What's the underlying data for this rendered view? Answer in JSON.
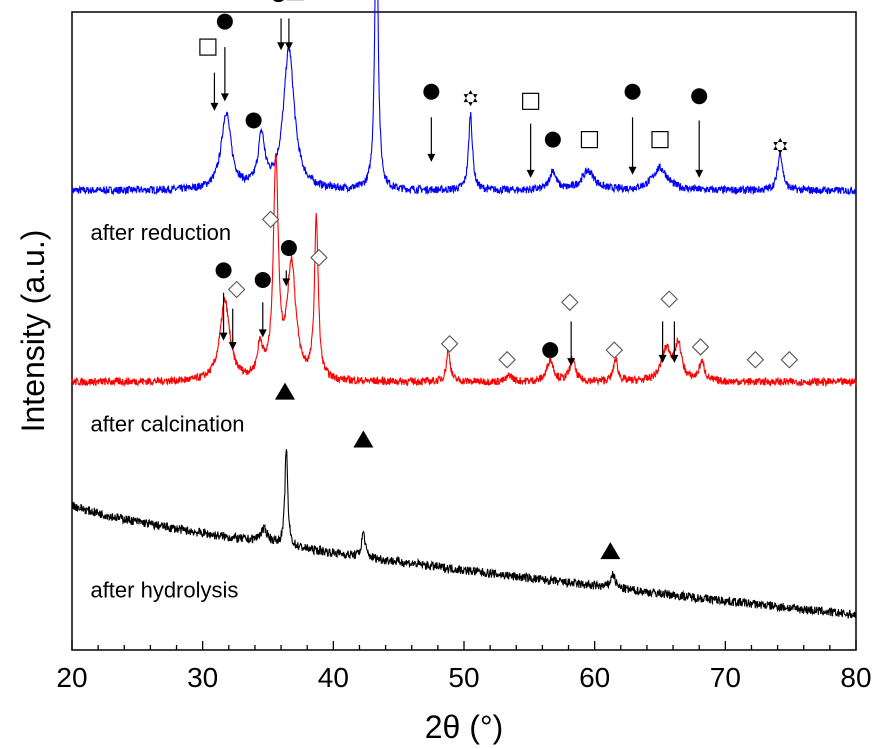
{
  "chart_data": {
    "type": "line",
    "xlabel": "2θ (°)",
    "ylabel": "Intensity (a.u.)",
    "xlim": [
      20,
      80
    ],
    "x_ticks": [
      20,
      30,
      40,
      50,
      60,
      70,
      80
    ],
    "x_tick_labels": [
      "20",
      "30",
      "40",
      "50",
      "60",
      "70",
      "80"
    ],
    "y_ticks_shown": false,
    "grid": false,
    "series": [
      {
        "name": "after reduction",
        "color": "#0000ff",
        "baseline": 0.72,
        "noise": 0.006,
        "peaks": [
          {
            "x": 31.8,
            "h": 0.12,
            "w": 0.9
          },
          {
            "x": 34.5,
            "h": 0.08,
            "w": 0.6
          },
          {
            "x": 36.6,
            "h": 0.22,
            "w": 1.0
          },
          {
            "x": 43.3,
            "h": 0.46,
            "w": 0.3
          },
          {
            "x": 50.5,
            "h": 0.12,
            "w": 0.35
          },
          {
            "x": 56.8,
            "h": 0.03,
            "w": 0.6
          },
          {
            "x": 59.5,
            "h": 0.03,
            "w": 1.2
          },
          {
            "x": 65.0,
            "h": 0.035,
            "w": 1.4
          },
          {
            "x": 74.2,
            "h": 0.06,
            "w": 0.45
          }
        ]
      },
      {
        "name": "after calcination",
        "color": "#ff0000",
        "baseline": 0.42,
        "noise": 0.006,
        "peaks": [
          {
            "x": 31.7,
            "h": 0.125,
            "w": 0.9
          },
          {
            "x": 34.4,
            "h": 0.05,
            "w": 0.5
          },
          {
            "x": 35.6,
            "h": 0.34,
            "w": 0.45
          },
          {
            "x": 36.8,
            "h": 0.18,
            "w": 0.8
          },
          {
            "x": 38.7,
            "h": 0.25,
            "w": 0.35
          },
          {
            "x": 48.8,
            "h": 0.05,
            "w": 0.35
          },
          {
            "x": 53.5,
            "h": 0.01,
            "w": 0.5
          },
          {
            "x": 56.6,
            "h": 0.035,
            "w": 0.6
          },
          {
            "x": 58.3,
            "h": 0.035,
            "w": 0.5
          },
          {
            "x": 61.6,
            "h": 0.035,
            "w": 0.4
          },
          {
            "x": 65.5,
            "h": 0.05,
            "w": 0.9
          },
          {
            "x": 66.4,
            "h": 0.055,
            "w": 0.6
          },
          {
            "x": 68.2,
            "h": 0.03,
            "w": 0.5
          }
        ]
      },
      {
        "name": "after hydrolysis",
        "color": "#000000",
        "baseline_start": 0.228,
        "baseline_end": 0.055,
        "noise": 0.007,
        "peaks": [
          {
            "x": 34.7,
            "h": 0.02,
            "w": 0.8
          },
          {
            "x": 36.4,
            "h": 0.155,
            "w": 0.25
          },
          {
            "x": 42.3,
            "h": 0.04,
            "w": 0.3
          },
          {
            "x": 61.4,
            "h": 0.022,
            "w": 0.4
          }
        ]
      }
    ],
    "series_labels": [
      {
        "text": "after reduction",
        "x": 20.8,
        "y": 0.655
      },
      {
        "text": "after calcination",
        "x": 20.8,
        "y": 0.355
      },
      {
        "text": "after hydrolysis",
        "x": 20.8,
        "y": 0.095
      }
    ],
    "markers": [
      {
        "s": "square",
        "x": 30.4,
        "y": 0.945,
        "ax": 30.9,
        "ay1": 0.905,
        "ay2": 0.845
      },
      {
        "s": "circle",
        "x": 31.7,
        "y": 0.985,
        "ax": 31.7,
        "ay1": 0.945,
        "ay2": 0.86
      },
      {
        "s": "circle",
        "x": 33.9,
        "y": 0.83
      },
      {
        "s": "circle",
        "x": 35.8,
        "y": 1.028,
        "ax": 36.0,
        "ay1": 0.99,
        "ay2": 0.94
      },
      {
        "s": "square",
        "x": 37.1,
        "y": 1.032,
        "ax": 36.6,
        "ay1": 0.99,
        "ay2": 0.94
      },
      {
        "s": "star",
        "x": 43.3,
        "y": 1.19
      },
      {
        "s": "circle",
        "x": 47.5,
        "y": 0.875,
        "ax": 47.5,
        "ay1": 0.835,
        "ay2": 0.765
      },
      {
        "s": "star",
        "x": 50.5,
        "y": 0.865
      },
      {
        "s": "square",
        "x": 55.1,
        "y": 0.86,
        "ax": 55.1,
        "ay1": 0.825,
        "ay2": 0.74
      },
      {
        "s": "circle",
        "x": 56.8,
        "y": 0.8
      },
      {
        "s": "square",
        "x": 59.6,
        "y": 0.8
      },
      {
        "s": "circle",
        "x": 62.9,
        "y": 0.875,
        "ax": 62.9,
        "ay1": 0.835,
        "ay2": 0.745
      },
      {
        "s": "square",
        "x": 65.0,
        "y": 0.8
      },
      {
        "s": "circle",
        "x": 68.0,
        "y": 0.868,
        "ax": 68.0,
        "ay1": 0.83,
        "ay2": 0.74
      },
      {
        "s": "star",
        "x": 74.2,
        "y": 0.79
      },
      {
        "s": "circle",
        "x": 31.6,
        "y": 0.595,
        "ax": 31.6,
        "ay1": 0.56,
        "ay2": 0.485
      },
      {
        "s": "diamond",
        "x": 32.6,
        "y": 0.565,
        "ax": 32.3,
        "ay1": 0.535,
        "ay2": 0.47
      },
      {
        "s": "circle",
        "x": 34.6,
        "y": 0.58,
        "ax": 34.6,
        "ay1": 0.545,
        "ay2": 0.49
      },
      {
        "s": "diamond",
        "x": 35.2,
        "y": 0.675
      },
      {
        "s": "circle",
        "x": 36.6,
        "y": 0.63,
        "ax": 36.4,
        "ay1": 0.595,
        "ay2": 0.57
      },
      {
        "s": "diamond",
        "x": 38.9,
        "y": 0.615
      },
      {
        "s": "diamond",
        "x": 48.9,
        "y": 0.48
      },
      {
        "s": "diamond",
        "x": 53.3,
        "y": 0.455
      },
      {
        "s": "circle",
        "x": 56.6,
        "y": 0.47
      },
      {
        "s": "diamond",
        "x": 58.1,
        "y": 0.545,
        "ax": 58.2,
        "ay1": 0.515,
        "ay2": 0.445
      },
      {
        "s": "diamond",
        "x": 61.5,
        "y": 0.47
      },
      {
        "s": "diamond",
        "x": 65.7,
        "y": 0.55,
        "ax1": 65.2,
        "ax2": 66.1,
        "ay1": 0.515,
        "ay2": 0.45
      },
      {
        "s": "diamond",
        "x": 68.1,
        "y": 0.475
      },
      {
        "s": "diamond",
        "x": 72.3,
        "y": 0.455
      },
      {
        "s": "diamond",
        "x": 74.9,
        "y": 0.455
      },
      {
        "s": "triangle",
        "x": 36.3,
        "y": 0.405
      },
      {
        "s": "triangle",
        "x": 42.3,
        "y": 0.33
      },
      {
        "s": "triangle",
        "x": 61.2,
        "y": 0.155
      }
    ]
  }
}
